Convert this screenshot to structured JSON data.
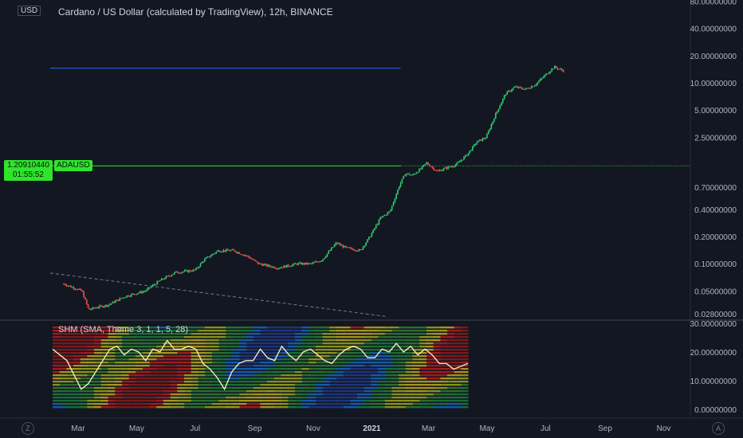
{
  "header": {
    "title": "Cardano / US Dollar (calculated by TradingView), 12h, BINANCE",
    "currency": "USD"
  },
  "price_tag": {
    "value": "1.20910440",
    "countdown": "01:55:52",
    "symbol": "ADAUSD"
  },
  "indicator": {
    "label": "SHM (SMA, Theme 3, 1, 1, 5, 28)"
  },
  "corner_left": "Z",
  "corner_right": "A",
  "colors": {
    "background": "#131722",
    "candle_up": "#2ecc71",
    "candle_down": "#ef5350",
    "price_line": "#2ee52b",
    "resistance_line": "#2962ff",
    "trend_line": "#787b86",
    "oscillator_line": "#f5e9b5"
  },
  "chart_data": [
    {
      "type": "line",
      "title": "Cardano / US Dollar (calculated by TradingView), 12h, BINANCE",
      "scale": "log",
      "y_ticks": [
        "80.00000000",
        "40.00000000",
        "20.00000000",
        "10.00000000",
        "5.00000000",
        "2.50000000",
        "0.70000000",
        "0.40000000",
        "0.20000000",
        "0.10000000",
        "0.05000000",
        "0.02800000"
      ],
      "x_ticks": [
        "Mar",
        "May",
        "Jul",
        "Sep",
        "Nov",
        "2021",
        "Mar",
        "May",
        "Jul",
        "Sep",
        "Nov"
      ],
      "x": [
        "2020-02-15",
        "2020-03-05",
        "2020-03-12",
        "2020-03-20",
        "2020-04-01",
        "2020-04-20",
        "2020-05-10",
        "2020-05-25",
        "2020-06-10",
        "2020-07-01",
        "2020-07-10",
        "2020-07-25",
        "2020-08-10",
        "2020-08-25",
        "2020-09-05",
        "2020-09-25",
        "2020-10-15",
        "2020-10-30",
        "2020-11-10",
        "2020-11-25",
        "2020-12-05",
        "2020-12-20",
        "2020-12-30",
        "2021-01-10",
        "2021-01-20",
        "2021-01-30",
        "2021-02-05",
        "2021-02-12",
        "2021-02-20",
        "2021-02-27",
        "2021-03-10",
        "2021-03-20",
        "2021-03-30",
        "2021-04-10",
        "2021-04-20",
        "2021-04-30",
        "2021-05-10",
        "2021-05-20",
        "2021-05-30",
        "2021-06-10",
        "2021-06-20",
        "2021-06-30",
        "2021-07-10",
        "2021-07-20"
      ],
      "series": [
        {
          "values": [
            0.06,
            0.05,
            0.031,
            0.033,
            0.035,
            0.044,
            0.05,
            0.065,
            0.08,
            0.085,
            0.11,
            0.14,
            0.14,
            0.12,
            0.1,
            0.09,
            0.1,
            0.1,
            0.11,
            0.17,
            0.15,
            0.14,
            0.2,
            0.32,
            0.38,
            0.75,
            1.0,
            0.95,
            1.1,
            1.3,
            1.05,
            1.15,
            1.25,
            1.6,
            2.2,
            2.5,
            4.5,
            7.5,
            9.0,
            8.5,
            9.5,
            12.0,
            15.0,
            13.5
          ]
        }
      ],
      "price_line": 1.2091044,
      "resistance_line": 14.5,
      "trend_line": [
        {
          "x": "2020-02-01",
          "y": 0.079
        },
        {
          "x": "2021-01-15",
          "y": 0.0262
        }
      ]
    },
    {
      "type": "line",
      "title": "SHM (SMA, Theme 3, 1, 1, 5, 28)",
      "y_ticks": [
        "30.00000000",
        "20.00000000",
        "10.00000000",
        "0.00000000"
      ],
      "ylim": [
        0,
        30
      ],
      "series": [
        {
          "values": [
            21,
            19,
            17,
            12,
            7,
            9,
            13,
            17,
            21,
            22,
            19,
            21,
            20,
            17,
            21,
            20,
            24,
            21,
            21,
            22,
            21,
            16,
            14,
            11,
            7,
            13,
            16,
            17,
            17,
            21,
            18,
            17,
            22,
            19,
            17,
            20,
            21,
            19,
            17,
            16,
            19,
            21,
            22,
            21,
            18,
            18,
            21,
            20,
            23,
            20,
            22,
            19,
            21,
            19,
            16,
            16,
            14,
            15,
            16
          ]
        }
      ]
    }
  ]
}
